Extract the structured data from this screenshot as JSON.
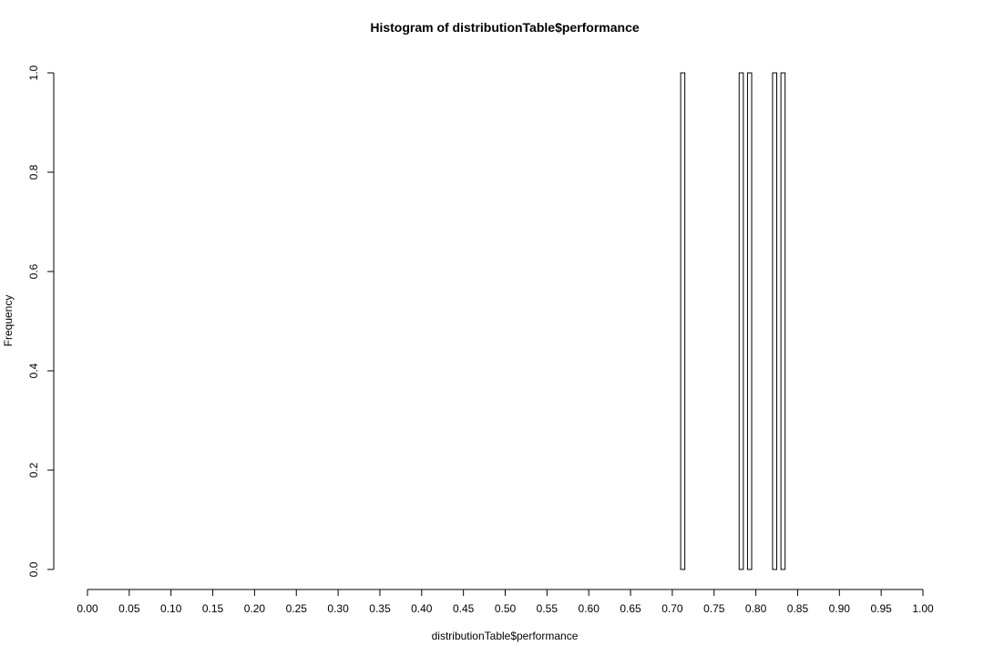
{
  "chart_data": {
    "type": "bar",
    "title": "Histogram of distributionTable$performance",
    "xlabel": "distributionTable$performance",
    "ylabel": "Frequency",
    "xlim": [
      0.0,
      1.0
    ],
    "ylim": [
      0.0,
      1.0
    ],
    "x_ticks": [
      "0.00",
      "0.05",
      "0.10",
      "0.15",
      "0.20",
      "0.25",
      "0.30",
      "0.35",
      "0.40",
      "0.45",
      "0.50",
      "0.55",
      "0.60",
      "0.65",
      "0.70",
      "0.75",
      "0.80",
      "0.85",
      "0.90",
      "0.95",
      "1.00"
    ],
    "y_ticks": [
      "0.0",
      "0.2",
      "0.4",
      "0.6",
      "0.8",
      "1.0"
    ],
    "grid": false,
    "legend": "none",
    "bins": [
      {
        "start": 0.71,
        "end": 0.715,
        "count": 1
      },
      {
        "start": 0.715,
        "end": 0.72,
        "count": 0
      },
      {
        "start": 0.72,
        "end": 0.725,
        "count": 0
      },
      {
        "start": 0.725,
        "end": 0.73,
        "count": 0
      },
      {
        "start": 0.73,
        "end": 0.735,
        "count": 0
      },
      {
        "start": 0.735,
        "end": 0.74,
        "count": 0
      },
      {
        "start": 0.74,
        "end": 0.745,
        "count": 0
      },
      {
        "start": 0.745,
        "end": 0.75,
        "count": 0
      },
      {
        "start": 0.75,
        "end": 0.755,
        "count": 0
      },
      {
        "start": 0.755,
        "end": 0.76,
        "count": 0
      },
      {
        "start": 0.76,
        "end": 0.765,
        "count": 0
      },
      {
        "start": 0.765,
        "end": 0.77,
        "count": 0
      },
      {
        "start": 0.77,
        "end": 0.775,
        "count": 0
      },
      {
        "start": 0.775,
        "end": 0.78,
        "count": 0
      },
      {
        "start": 0.78,
        "end": 0.785,
        "count": 1
      },
      {
        "start": 0.785,
        "end": 0.79,
        "count": 0
      },
      {
        "start": 0.79,
        "end": 0.795,
        "count": 1
      },
      {
        "start": 0.795,
        "end": 0.8,
        "count": 0
      },
      {
        "start": 0.8,
        "end": 0.805,
        "count": 0
      },
      {
        "start": 0.805,
        "end": 0.81,
        "count": 0
      },
      {
        "start": 0.81,
        "end": 0.815,
        "count": 0
      },
      {
        "start": 0.815,
        "end": 0.82,
        "count": 0
      },
      {
        "start": 0.82,
        "end": 0.825,
        "count": 1
      },
      {
        "start": 0.825,
        "end": 0.83,
        "count": 0
      },
      {
        "start": 0.83,
        "end": 0.835,
        "count": 1
      }
    ],
    "colors": {
      "bar_fill": "#ffffff",
      "bar_stroke": "#000000"
    }
  }
}
